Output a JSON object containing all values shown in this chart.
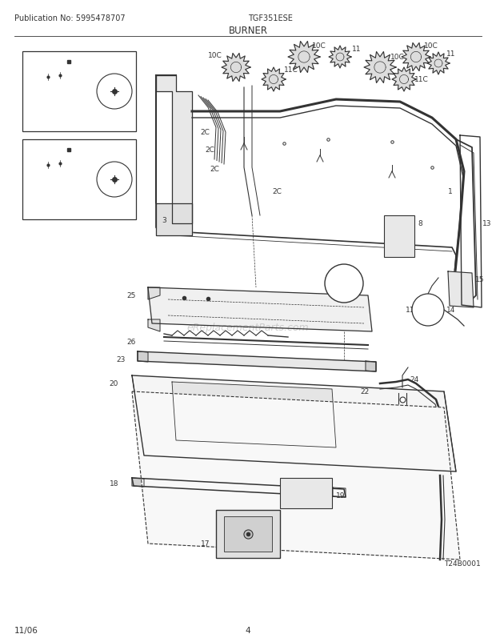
{
  "publication_no": "Publication No: 5995478707",
  "model": "TGF351ESE",
  "section": "BURNER",
  "footer_left": "11/06",
  "footer_center": "4",
  "watermark": "eReplacementParts.com",
  "diagram_id": "T24B0001",
  "bg_color": "#ffffff",
  "line_color": "#333333",
  "header_fontsize": 7.0,
  "title_fontsize": 8.5,
  "footer_fontsize": 7.5,
  "watermark_color": "#bbbbbb",
  "label_fontsize": 6.5
}
